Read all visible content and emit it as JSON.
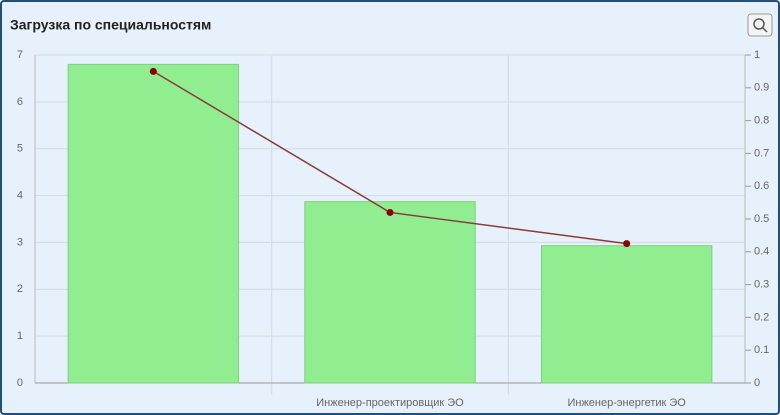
{
  "chart_data": {
    "type": "bar-line",
    "title": "Загрузка по специальностям",
    "categories": [
      null,
      "Инженер-проектировщик ЭО",
      "Инженер-энергетик ЭО"
    ],
    "series": [
      {
        "type": "bar",
        "color": "#90ee90",
        "values": [
          6.8,
          3.87,
          2.93
        ]
      },
      {
        "type": "line",
        "color": "#8b0000",
        "axis": "y2",
        "values": [
          0.95,
          0.52,
          0.425
        ]
      }
    ],
    "ylim": [
      0,
      7
    ],
    "yticks": [
      0,
      1,
      2,
      3,
      4,
      5,
      6,
      7
    ],
    "y2lim": [
      0,
      1
    ],
    "y2ticks": [
      0,
      0.1,
      0.2,
      0.3,
      0.4,
      0.5,
      0.6,
      0.7,
      0.8,
      0.9,
      1
    ],
    "grid": true
  }
}
